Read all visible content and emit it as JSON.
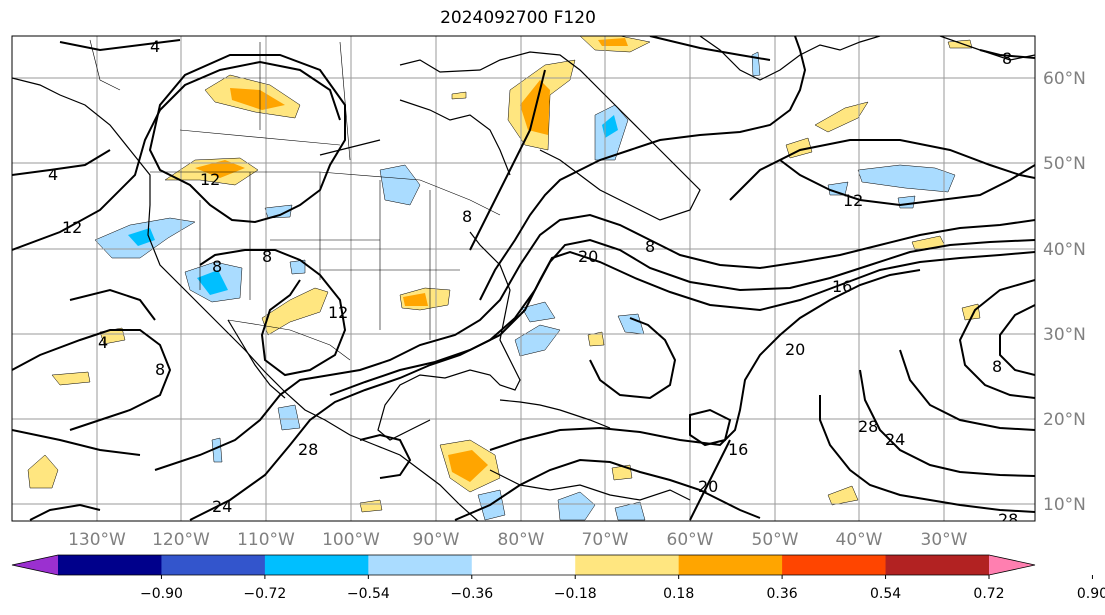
{
  "title": "2024092700 F120",
  "map": {
    "lon_labels": [
      {
        "text": "130°W",
        "lon": -130
      },
      {
        "text": "120°W",
        "lon": -120
      },
      {
        "text": "110°W",
        "lon": -110
      },
      {
        "text": "100°W",
        "lon": -100
      },
      {
        "text": "90°W",
        "lon": -90
      },
      {
        "text": "80°W",
        "lon": -80
      },
      {
        "text": "70°W",
        "lon": -70
      },
      {
        "text": "60°W",
        "lon": -60
      },
      {
        "text": "50°W",
        "lon": -50
      },
      {
        "text": "40°W",
        "lon": -40
      },
      {
        "text": "30°W",
        "lon": -30
      }
    ],
    "lat_labels": [
      {
        "text": "60°N",
        "lat": 60
      },
      {
        "text": "50°N",
        "lat": 50
      },
      {
        "text": "40°N",
        "lat": 40
      },
      {
        "text": "30°N",
        "lat": 30
      },
      {
        "text": "20°N",
        "lat": 20
      },
      {
        "text": "10°N",
        "lat": 10
      }
    ],
    "contour_labels": [
      "4",
      "4",
      "12",
      "12",
      "8",
      "8",
      "12",
      "20",
      "8",
      "16",
      "20",
      "28",
      "24",
      "28",
      "8",
      "4",
      "8",
      "16",
      "20",
      "28",
      "24",
      "8",
      "8",
      "12"
    ]
  },
  "colorbar": {
    "colors": [
      "#9b30d0",
      "#00008b",
      "#3355cc",
      "#00bfff",
      "#aadcff",
      "#ffffff",
      "#ffe680",
      "#ffa500",
      "#ff4500",
      "#b22222",
      "#ff7fb0"
    ],
    "ticks": [
      "−0.90",
      "−0.72",
      "−0.54",
      "−0.36",
      "−0.18",
      "0.18",
      "0.36",
      "0.54",
      "0.72",
      "0.90"
    ]
  }
}
